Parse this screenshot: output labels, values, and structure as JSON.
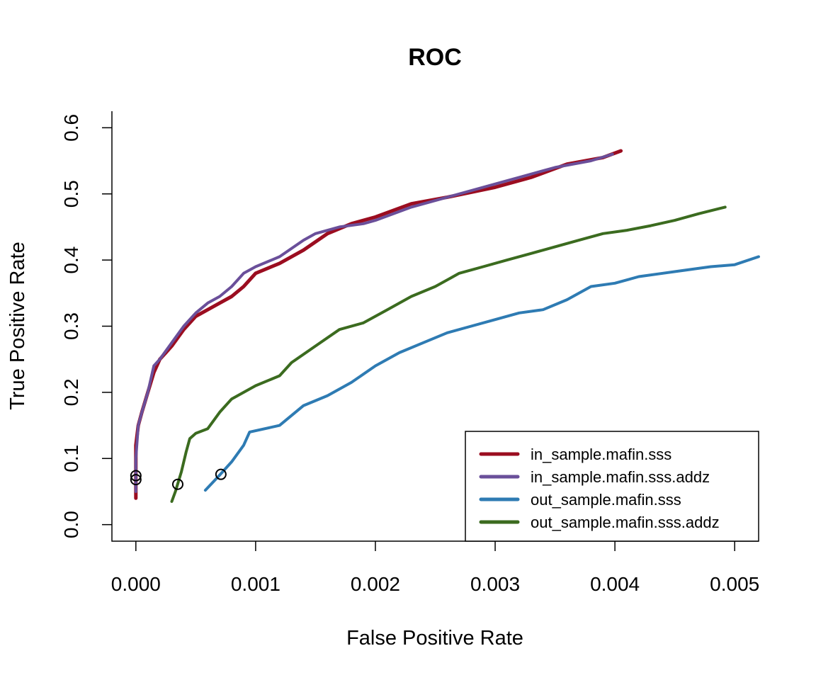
{
  "chart_data": {
    "type": "line",
    "title": "ROC",
    "xlabel": "False Positive Rate",
    "ylabel": "True Positive Rate",
    "xlim": [
      -0.0002,
      0.0052
    ],
    "ylim": [
      -0.025,
      0.625
    ],
    "xticks": [
      0.0,
      0.001,
      0.002,
      0.003,
      0.004,
      0.005
    ],
    "xtick_labels": [
      "0.000",
      "0.001",
      "0.002",
      "0.003",
      "0.004",
      "0.005"
    ],
    "yticks": [
      0.0,
      0.1,
      0.2,
      0.3,
      0.4,
      0.5,
      0.6
    ],
    "ytick_labels": [
      "0.0",
      "0.1",
      "0.2",
      "0.3",
      "0.4",
      "0.5",
      "0.6"
    ],
    "legend_position": "bottom-right",
    "series": [
      {
        "name": "in_sample.mafin.sss",
        "color": "#9b0d20",
        "width": 5,
        "x": [
          0.0,
          0.0,
          0.0,
          2e-05,
          5e-05,
          0.0001,
          0.00015,
          0.0002,
          0.00025,
          0.0003,
          0.0004,
          0.0005,
          0.0006,
          0.0007,
          0.0008,
          0.0009,
          0.001,
          0.0012,
          0.0014,
          0.0016,
          0.0018,
          0.002,
          0.0023,
          0.0026,
          0.003,
          0.0033,
          0.0036,
          0.0039,
          0.00405
        ],
        "y": [
          0.04,
          0.09,
          0.12,
          0.15,
          0.17,
          0.2,
          0.23,
          0.25,
          0.26,
          0.27,
          0.295,
          0.315,
          0.325,
          0.335,
          0.345,
          0.36,
          0.38,
          0.395,
          0.415,
          0.44,
          0.455,
          0.465,
          0.485,
          0.495,
          0.51,
          0.525,
          0.545,
          0.555,
          0.565
        ]
      },
      {
        "name": "in_sample.mafin.sss.addz",
        "color": "#6a4f9a",
        "width": 4,
        "x": [
          0.0,
          0.0,
          2e-05,
          5e-05,
          0.0001,
          0.00015,
          0.0002,
          0.0003,
          0.0004,
          0.0005,
          0.0006,
          0.0007,
          0.0008,
          0.0009,
          0.001,
          0.0012,
          0.0014,
          0.0015,
          0.0017,
          0.0019,
          0.002,
          0.0023,
          0.0026,
          0.0029,
          0.0032,
          0.0035,
          0.0038,
          0.00398
        ],
        "y": [
          0.05,
          0.1,
          0.15,
          0.17,
          0.2,
          0.24,
          0.25,
          0.275,
          0.3,
          0.32,
          0.335,
          0.345,
          0.36,
          0.38,
          0.39,
          0.405,
          0.43,
          0.44,
          0.45,
          0.455,
          0.46,
          0.48,
          0.495,
          0.51,
          0.525,
          0.54,
          0.55,
          0.56
        ]
      },
      {
        "name": "out_sample.mafin.sss",
        "color": "#2e7bb3",
        "width": 4,
        "x": [
          0.00058,
          0.0007,
          0.0008,
          0.0009,
          0.00095,
          0.0012,
          0.0013,
          0.0014,
          0.0016,
          0.0018,
          0.002,
          0.0022,
          0.0024,
          0.0026,
          0.0028,
          0.003,
          0.0032,
          0.0034,
          0.0036,
          0.0038,
          0.004,
          0.0042,
          0.0044,
          0.0046,
          0.0048,
          0.005,
          0.0052
        ],
        "y": [
          0.052,
          0.075,
          0.095,
          0.12,
          0.14,
          0.15,
          0.165,
          0.18,
          0.195,
          0.215,
          0.24,
          0.26,
          0.275,
          0.29,
          0.3,
          0.31,
          0.32,
          0.325,
          0.34,
          0.36,
          0.365,
          0.375,
          0.38,
          0.385,
          0.39,
          0.393,
          0.405
        ]
      },
      {
        "name": "out_sample.mafin.sss.addz",
        "color": "#3b6b1f",
        "width": 4,
        "x": [
          0.0003,
          0.00033,
          0.00038,
          0.00042,
          0.00045,
          0.0005,
          0.0006,
          0.0007,
          0.0008,
          0.0009,
          0.001,
          0.0012,
          0.0013,
          0.0015,
          0.0017,
          0.0019,
          0.0021,
          0.0023,
          0.0025,
          0.0027,
          0.0029,
          0.0031,
          0.0033,
          0.0035,
          0.0037,
          0.0039,
          0.0041,
          0.0043,
          0.0045,
          0.0047,
          0.00492
        ],
        "y": [
          0.035,
          0.05,
          0.08,
          0.11,
          0.13,
          0.138,
          0.145,
          0.17,
          0.19,
          0.2,
          0.21,
          0.225,
          0.245,
          0.27,
          0.295,
          0.305,
          0.325,
          0.345,
          0.36,
          0.38,
          0.39,
          0.4,
          0.41,
          0.42,
          0.43,
          0.44,
          0.445,
          0.452,
          0.46,
          0.47,
          0.48
        ]
      }
    ],
    "markers": [
      {
        "x": 0.0,
        "y": 0.068
      },
      {
        "x": 0.0,
        "y": 0.074
      },
      {
        "x": 0.00035,
        "y": 0.061
      },
      {
        "x": 0.00071,
        "y": 0.076
      }
    ]
  }
}
